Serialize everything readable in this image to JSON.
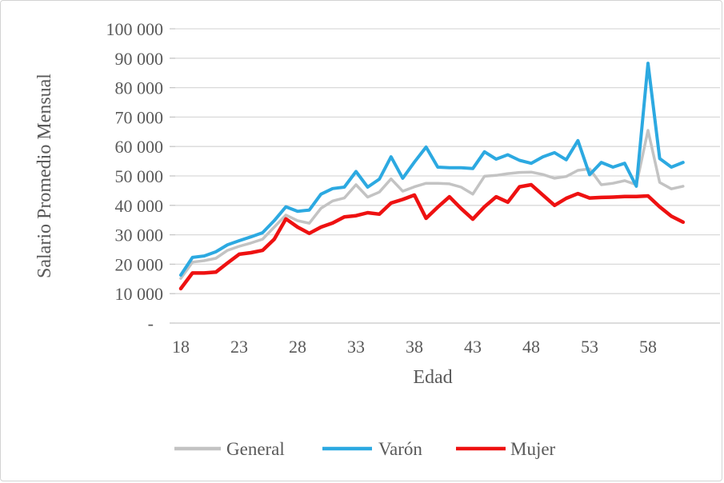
{
  "chart_data": {
    "type": "line",
    "title": "",
    "xlabel": "Edad",
    "ylabel": "Salario Promedio Mensual",
    "x": [
      18,
      19,
      20,
      21,
      22,
      23,
      24,
      25,
      26,
      27,
      28,
      29,
      30,
      31,
      32,
      33,
      34,
      35,
      36,
      37,
      38,
      39,
      40,
      41,
      42,
      43,
      44,
      45,
      46,
      47,
      48,
      49,
      50,
      51,
      52,
      53,
      54,
      55,
      56,
      57,
      58,
      59,
      60,
      61
    ],
    "x_tick_values": [
      18,
      23,
      28,
      33,
      38,
      43,
      48,
      53,
      58
    ],
    "x_tick_labels": [
      "18",
      "23",
      "28",
      "33",
      "38",
      "43",
      "48",
      "53",
      "58"
    ],
    "y_tick_values": [
      100000,
      90000,
      80000,
      70000,
      60000,
      50000,
      40000,
      30000,
      20000,
      10000,
      0
    ],
    "y_tick_labels": [
      "100 000",
      "90 000",
      "80 000",
      "70 000",
      "60 000",
      "50 000",
      "40 000",
      "30 000",
      "20 000",
      "10 000",
      "-"
    ],
    "ylim": [
      0,
      100000
    ],
    "grid": "horizontal",
    "legend_position": "bottom",
    "series": [
      {
        "name": "General",
        "color": "#c3c3c3",
        "stroke_width": 3.5,
        "values": [
          15200,
          20700,
          21200,
          22000,
          24700,
          26100,
          27200,
          28500,
          32600,
          36700,
          34800,
          33900,
          39000,
          41500,
          42500,
          47000,
          42800,
          44500,
          49000,
          44800,
          46300,
          47500,
          47500,
          47300,
          46200,
          43800,
          49900,
          50200,
          50800,
          51200,
          51300,
          50500,
          49200,
          49800,
          51900,
          52400,
          47000,
          47500,
          48400,
          47000,
          65500,
          47800,
          45600,
          46500
        ]
      },
      {
        "name": "Varón",
        "color": "#2ca9e1",
        "stroke_width": 4,
        "values": [
          16300,
          22300,
          22800,
          24200,
          26600,
          28000,
          29300,
          30700,
          34800,
          39500,
          38000,
          38400,
          43800,
          45700,
          46200,
          51500,
          46200,
          48900,
          56500,
          49200,
          54700,
          59800,
          53000,
          52800,
          52800,
          52500,
          58200,
          55700,
          57200,
          55300,
          54300,
          56500,
          57900,
          55500,
          62000,
          50400,
          54600,
          53000,
          54300,
          46500,
          88300,
          55900,
          53000,
          54600
        ]
      },
      {
        "name": "Mujer",
        "color": "#ee1111",
        "stroke_width": 4.5,
        "values": [
          11700,
          17000,
          17000,
          17300,
          20400,
          23400,
          23900,
          24700,
          28500,
          35400,
          32600,
          30500,
          32600,
          34000,
          36100,
          36500,
          37500,
          37000,
          40800,
          42000,
          43500,
          35600,
          39400,
          42900,
          38900,
          35300,
          39500,
          42900,
          41100,
          46300,
          47000,
          43500,
          40000,
          42400,
          44000,
          42500,
          42700,
          42800,
          43000,
          43000,
          43200,
          39500,
          36300,
          34300
        ]
      }
    ]
  },
  "style": {
    "gridline_color": "#d9d9d9",
    "axis_line_color": "#c6c6c6",
    "text_color": "#595959",
    "background": "#ffffff",
    "border_color": "#d3d3d3"
  }
}
